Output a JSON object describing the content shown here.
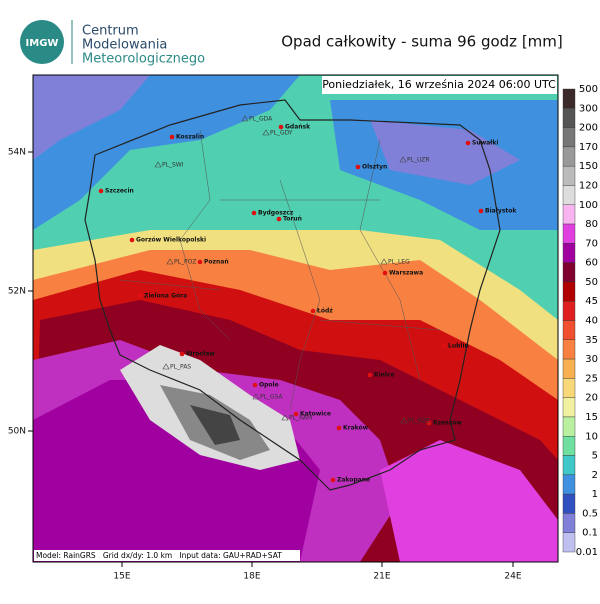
{
  "header": {
    "logo": "IMGW",
    "org": [
      "Centrum",
      "Modelowania",
      "Meteorologicznego"
    ],
    "title": "Opad całkowity - suma 96 godz [mm]"
  },
  "map": {
    "date": "Poniedziałek, 16 września 2024 06:00 UTC",
    "lat_labels": [
      "54N",
      "52N",
      "50N"
    ],
    "lon_labels": [
      "15E",
      "18E",
      "21E",
      "24E"
    ],
    "cities": [
      "Koszalin",
      "Gdańsk",
      "Suwałki",
      "Olsztyn",
      "Szczecin",
      "Bydgoszcz",
      "Toruń",
      "Białystok",
      "Gorzów Wielkopolski",
      "Poznań",
      "Warszawa",
      "Łódź",
      "Zielona Góra",
      "Lublin",
      "Wrocław",
      "Kielce",
      "Opole",
      "Katowice",
      "Kraków",
      "Rzeszów",
      "Zakopane"
    ],
    "stations": [
      "PL_GDA",
      "PL_GDY",
      "PL_SWI",
      "PL_UZR",
      "PL_LEG",
      "PL_POZ",
      "PL_PAS",
      "PL_GSA",
      "PL_RAM",
      "PL_RZE"
    ],
    "footer": "Model: RainGRS   Grid dx/dy: 1.0 km   Input data: GAU+RAD+SAT"
  },
  "legend": {
    "levels": [
      500,
      300,
      200,
      170,
      150,
      120,
      100,
      80,
      70,
      60,
      50,
      45,
      40,
      35,
      30,
      25,
      20,
      15,
      10,
      5,
      2,
      1,
      0.5,
      0.1,
      0.01
    ],
    "colors": [
      "#3c2a2a",
      "#555555",
      "#777777",
      "#999999",
      "#bbbbbb",
      "#dddddd",
      "#f8b4f0",
      "#e040e0",
      "#a000a0",
      "#800030",
      "#b00000",
      "#e02020",
      "#f05030",
      "#f88040",
      "#f8b050",
      "#f8d878",
      "#f0f0a0",
      "#b8f0a0",
      "#70e0a0",
      "#40c8c8",
      "#4090e0",
      "#3050c0",
      "#8080d8",
      "#c0c0f0"
    ]
  }
}
